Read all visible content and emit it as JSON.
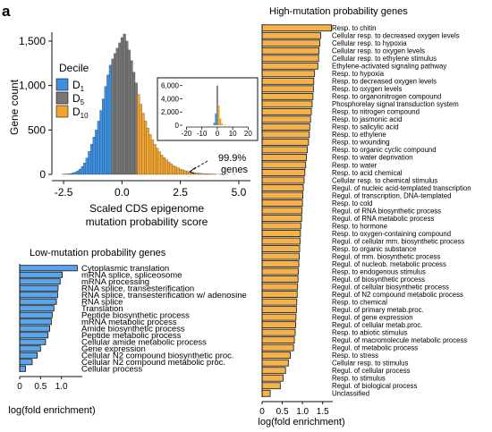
{
  "panel_label": "a",
  "colors": {
    "d1": "#3d8fe0",
    "d5": "#777777",
    "d10": "#f2a431",
    "low_bar": "#5aa6ee",
    "high_bar": "#f6b24a",
    "axis": "#111111"
  },
  "histogram": {
    "xlabel_line1": "Scaled CDS epigenome",
    "xlabel_line2": "mutation probability score",
    "ylabel": "Gene count",
    "legend_title": "Decile",
    "legend": [
      {
        "label": "D",
        "sub": "1",
        "color_key": "d1"
      },
      {
        "label": "D",
        "sub": "5",
        "color_key": "d5"
      },
      {
        "label": "D",
        "sub": "10",
        "color_key": "d10"
      }
    ],
    "inset_annotation_line1": "99.9%",
    "inset_annotation_line2": "genes"
  },
  "low_panel": {
    "title": "Low-mutation probability genes",
    "xlabel": "log(fold enrichment)"
  },
  "high_panel": {
    "title": "High-mutation probability genes",
    "xlabel": "log(fold enrichment)"
  },
  "chart_data": [
    {
      "type": "bar",
      "title": "",
      "subtype": "histogram",
      "xlabel": "Scaled CDS epigenome mutation probability score",
      "ylabel": "Gene count",
      "xlim": [
        -3,
        5.5
      ],
      "ylim": [
        0,
        1600
      ],
      "xticks": [
        "-2.5",
        "0.0",
        "2.5",
        "5.0"
      ],
      "yticks": [
        "0",
        "500",
        "1,000",
        "1,500"
      ],
      "bin_width": 0.1,
      "bins": [
        {
          "x": -2.5,
          "count": 2,
          "decile": "D1"
        },
        {
          "x": -2.4,
          "count": 4,
          "decile": "D1"
        },
        {
          "x": -2.3,
          "count": 6,
          "decile": "D1"
        },
        {
          "x": -2.2,
          "count": 10,
          "decile": "D1"
        },
        {
          "x": -2.1,
          "count": 16,
          "decile": "D1"
        },
        {
          "x": -2.0,
          "count": 25,
          "decile": "D1"
        },
        {
          "x": -1.9,
          "count": 40,
          "decile": "D1"
        },
        {
          "x": -1.8,
          "count": 60,
          "decile": "D1"
        },
        {
          "x": -1.7,
          "count": 90,
          "decile": "D1"
        },
        {
          "x": -1.6,
          "count": 130,
          "decile": "D1"
        },
        {
          "x": -1.5,
          "count": 185,
          "decile": "D1"
        },
        {
          "x": -1.4,
          "count": 260,
          "decile": "D1"
        },
        {
          "x": -1.3,
          "count": 340,
          "decile": "D1"
        },
        {
          "x": -1.2,
          "count": 420,
          "decile": "D1"
        },
        {
          "x": -1.1,
          "count": 500,
          "decile": "D1"
        },
        {
          "x": -1.0,
          "count": 600,
          "decile": "D1"
        },
        {
          "x": -0.9,
          "count": 720,
          "decile": "D1"
        },
        {
          "x": -0.8,
          "count": 850,
          "decile": "D1"
        },
        {
          "x": -0.7,
          "count": 990,
          "decile": "D1"
        },
        {
          "x": -0.6,
          "count": 1120,
          "decile": "D1"
        },
        {
          "x": -0.5,
          "count": 1230,
          "decile": "D1"
        },
        {
          "x": -0.4,
          "count": 1300,
          "decile": "D5"
        },
        {
          "x": -0.3,
          "count": 1360,
          "decile": "D5"
        },
        {
          "x": -0.2,
          "count": 1420,
          "decile": "D5"
        },
        {
          "x": -0.1,
          "count": 1480,
          "decile": "D5"
        },
        {
          "x": 0.0,
          "count": 1540,
          "decile": "D5"
        },
        {
          "x": 0.1,
          "count": 1580,
          "decile": "D5"
        },
        {
          "x": 0.2,
          "count": 1500,
          "decile": "D5"
        },
        {
          "x": 0.3,
          "count": 1400,
          "decile": "D5"
        },
        {
          "x": 0.4,
          "count": 1280,
          "decile": "D5"
        },
        {
          "x": 0.5,
          "count": 1150,
          "decile": "D5"
        },
        {
          "x": 0.6,
          "count": 1030,
          "decile": "D5"
        },
        {
          "x": 0.7,
          "count": 900,
          "decile": "D10"
        },
        {
          "x": 0.8,
          "count": 790,
          "decile": "D10"
        },
        {
          "x": 0.9,
          "count": 690,
          "decile": "D10"
        },
        {
          "x": 1.0,
          "count": 600,
          "decile": "D10"
        },
        {
          "x": 1.1,
          "count": 520,
          "decile": "D10"
        },
        {
          "x": 1.2,
          "count": 450,
          "decile": "D10"
        },
        {
          "x": 1.3,
          "count": 390,
          "decile": "D10"
        },
        {
          "x": 1.4,
          "count": 340,
          "decile": "D10"
        },
        {
          "x": 1.5,
          "count": 295,
          "decile": "D10"
        },
        {
          "x": 1.6,
          "count": 255,
          "decile": "D10"
        },
        {
          "x": 1.7,
          "count": 220,
          "decile": "D10"
        },
        {
          "x": 1.8,
          "count": 190,
          "decile": "D10"
        },
        {
          "x": 1.9,
          "count": 165,
          "decile": "D10"
        },
        {
          "x": 2.0,
          "count": 140,
          "decile": "D10"
        },
        {
          "x": 2.1,
          "count": 120,
          "decile": "D10"
        },
        {
          "x": 2.2,
          "count": 100,
          "decile": "D10"
        },
        {
          "x": 2.3,
          "count": 85,
          "decile": "D10"
        },
        {
          "x": 2.4,
          "count": 72,
          "decile": "D10"
        },
        {
          "x": 2.5,
          "count": 60,
          "decile": "D10"
        },
        {
          "x": 2.6,
          "count": 50,
          "decile": "D10"
        },
        {
          "x": 2.7,
          "count": 42,
          "decile": "D10"
        },
        {
          "x": 2.8,
          "count": 35,
          "decile": "D10"
        },
        {
          "x": 2.9,
          "count": 29,
          "decile": "D10"
        },
        {
          "x": 3.0,
          "count": 24,
          "decile": "D10"
        },
        {
          "x": 3.1,
          "count": 20,
          "decile": "D10"
        },
        {
          "x": 3.2,
          "count": 16,
          "decile": "D10"
        },
        {
          "x": 3.3,
          "count": 13,
          "decile": "D10"
        },
        {
          "x": 3.4,
          "count": 11,
          "decile": "D10"
        },
        {
          "x": 3.5,
          "count": 9,
          "decile": "D10"
        },
        {
          "x": 3.6,
          "count": 7,
          "decile": "D10"
        },
        {
          "x": 3.7,
          "count": 6,
          "decile": "D10"
        },
        {
          "x": 3.8,
          "count": 5,
          "decile": "D10"
        },
        {
          "x": 3.9,
          "count": 4,
          "decile": "D10"
        },
        {
          "x": 4.0,
          "count": 3,
          "decile": "D10"
        },
        {
          "x": 4.2,
          "count": 2,
          "decile": "D10"
        },
        {
          "x": 4.5,
          "count": 1,
          "decile": "D10"
        },
        {
          "x": 4.8,
          "count": 1,
          "decile": "D10"
        }
      ],
      "legend_placement": "left",
      "inset": {
        "type": "bar",
        "subtype": "histogram",
        "xlim": [
          -22,
          25
        ],
        "ylim": [
          0,
          6500
        ],
        "xticks": [
          "-20",
          "-10",
          "0",
          "10",
          "20"
        ],
        "yticks": [
          "0",
          "2,000",
          "4,000",
          "6,000"
        ],
        "bins": [
          {
            "x": -2,
            "count": 400,
            "decile": "D1"
          },
          {
            "x": -1,
            "count": 1800,
            "decile": "D1"
          },
          {
            "x": 0,
            "count": 6000,
            "decile": "D5"
          },
          {
            "x": 1,
            "count": 3000,
            "decile": "D10"
          },
          {
            "x": 2,
            "count": 1000,
            "decile": "D10"
          },
          {
            "x": 3,
            "count": 300,
            "decile": "D10"
          },
          {
            "x": 5,
            "count": 80,
            "decile": "D10"
          },
          {
            "x": 8,
            "count": 20,
            "decile": "D10"
          }
        ]
      }
    },
    {
      "type": "bar",
      "orientation": "horizontal",
      "title": "Low-mutation probability genes",
      "xlabel": "log(fold enrichment)",
      "xlim": [
        0,
        1.5
      ],
      "xticks": [
        "0",
        "0.5",
        "1.0"
      ],
      "categories": [
        "Cytoplasmic translation",
        "mRNA splice, spliceosome",
        "mRNA processing",
        "RNA splice, transesterification",
        "RNA splice, transesterification w/ adenosine",
        "RNA splice",
        "Translation",
        "Peptide biosynthetic process",
        "mRNA metabolic process",
        "Amide biosynthetic process",
        "Peptide metabolic process",
        "Cellular amide metabolic process",
        "Gene expression",
        "Cellular N2 compound biosynthetic proc.",
        "Cellular N2 compound metabolic proc.",
        "Cellular process"
      ],
      "values": [
        1.38,
        1.02,
        0.97,
        0.92,
        0.91,
        0.88,
        0.82,
        0.78,
        0.76,
        0.72,
        0.68,
        0.62,
        0.5,
        0.42,
        0.3,
        0.14
      ]
    },
    {
      "type": "bar",
      "orientation": "horizontal",
      "title": "High-mutation probability genes",
      "xlabel": "log(fold enrichment)",
      "xlim": [
        0,
        1.75
      ],
      "xticks": [
        "0",
        "0.5",
        "1.0",
        "1.5"
      ],
      "categories": [
        "Resp. to chitin",
        "Cellular resp. to decreased oxygen levels",
        "Cellular resp. to hypoxia",
        "Cellular resp. to oxygen levels",
        "Cellular resp. to ethylene stimulus",
        "Ethylene-activated signaling pathway",
        "Resp. to hypoxia",
        "Resp. to decreased oxygen levels",
        "Resp. to oxygen levels",
        "Resp. to organonitrogen compound",
        "Phosphorelay signal transduction system",
        "Resp. to nitrogen compound",
        "Resp. to jasmonic acid",
        "Resp. to salicylic acid",
        "Resp. to ethylene",
        "Resp. to wounding",
        "Resp. to organic cyclic compound",
        "Resp. to water deprivation",
        "Resp. to water",
        "Resp. to acid chemical",
        "Cellular resp. to chemical stimulus",
        "Regul. of nucleic acid-templated transcription",
        "Regul. of transcription, DNA-templated",
        "Resp. to cold",
        "Regul. of RNA biosynthetic process",
        "Regul. of RNA metabolic process",
        "Resp. to hormone",
        "Resp. to oxygen-containing compound",
        "Regul. of cellular mm. biosynthetic process",
        "Resp. to organic substance",
        "Regul. of mm. biosynthetic process",
        "Regul. of nucleob. metabolic process",
        "Resp. to endogenous stimulus",
        "Regul. of biosynthetic process",
        "Regul. of cellular biosynthetic process",
        "Regul. of N2 compound metabolic process",
        "Resp. to chemical",
        "Regul. of primary metab.proc.",
        "Regul. of gene expression",
        "Regul. of cellular metab.proc.",
        "Resp. to abiotic stimulus",
        "Regul. of macromolecule metabolic process",
        "Regul. of metabolic process",
        "Resp. to stress",
        "Cellular resp. to stimulus",
        "Regul. of cellular process",
        "Resp. to stimulus",
        "Regul. of biological process",
        "Unclassified"
      ],
      "values": [
        1.72,
        1.45,
        1.43,
        1.41,
        1.4,
        1.38,
        1.3,
        1.28,
        1.27,
        1.26,
        1.24,
        1.22,
        1.2,
        1.18,
        1.17,
        1.15,
        1.12,
        1.1,
        1.08,
        1.06,
        1.04,
        1.02,
        1.01,
        1.0,
        0.99,
        0.98,
        0.96,
        0.95,
        0.94,
        0.93,
        0.92,
        0.91,
        0.9,
        0.89,
        0.88,
        0.87,
        0.86,
        0.85,
        0.84,
        0.83,
        0.82,
        0.8,
        0.78,
        0.7,
        0.65,
        0.58,
        0.52,
        0.45,
        0.2
      ]
    }
  ]
}
